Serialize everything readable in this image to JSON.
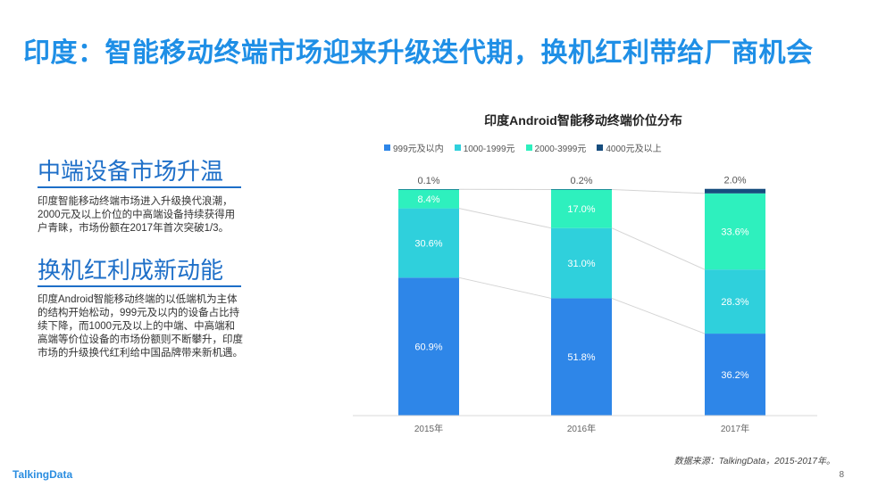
{
  "page": {
    "title": "印度：智能移动终端市场迎来升级迭代期，换机红利带给厂商机会",
    "brand": "TalkingData",
    "page_number": "8",
    "source": "数据来源：TalkingData，2015-2017年。"
  },
  "left": {
    "section1_title": "中端设备市场升温",
    "section1_text": "印度智能移动终端市场进入升级换代浪潮，2000元及以上价位的中高端设备持续获得用户青睐，市场份额在2017年首次突破1/3。",
    "section2_title": "换机红利成新动能",
    "section2_text": "印度Android智能移动终端的以低端机为主体的结构开始松动，999元及以内的设备占比持续下降，而1000元及以上的中端、中高端和高端等价位设备的市场份额则不断攀升，印度市场的升级换代红利给中国品牌带来新机遇。"
  },
  "chart_data": {
    "type": "bar",
    "stacked": true,
    "title": "印度Android智能移动终端价位分布",
    "categories": [
      "2015年",
      "2016年",
      "2017年"
    ],
    "series": [
      {
        "name": "999元及以内",
        "color": "#2e86e8",
        "values": [
          60.9,
          51.8,
          36.2
        ],
        "labels": [
          "60.9%",
          "51.8%",
          "36.2%"
        ]
      },
      {
        "name": "1000-1999元",
        "color": "#2fd0dc",
        "values": [
          30.6,
          31.0,
          28.3
        ],
        "labels": [
          "30.6%",
          "31.0%",
          "28.3%"
        ]
      },
      {
        "name": "2000-3999元",
        "color": "#2ef0be",
        "values": [
          8.4,
          17.0,
          33.6
        ],
        "labels": [
          "8.4%",
          "17.0%",
          "33.6%"
        ]
      },
      {
        "name": "4000元及以上",
        "color": "#164d7e",
        "values": [
          0.1,
          0.2,
          2.0
        ],
        "labels": [
          "0.1%",
          "0.2%",
          "2.0%"
        ]
      }
    ],
    "ylim": [
      0,
      100
    ],
    "legend_position": "top",
    "grid": false
  }
}
